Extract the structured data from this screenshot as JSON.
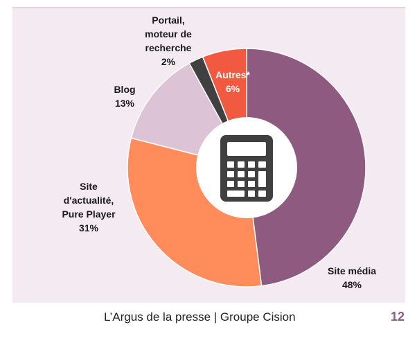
{
  "chart_data": {
    "type": "donut",
    "categories": [
      "Site média",
      "Site d'actualité, Pure Player",
      "Blog",
      "Portail, moteur de recherche",
      "Autres*"
    ],
    "values": [
      48,
      31,
      13,
      2,
      6
    ],
    "value_labels": [
      "48%",
      "31%",
      "13%",
      "2%",
      "6%"
    ],
    "colors": [
      "#8e5a80",
      "#ff8c5a",
      "#dcc3d5",
      "#404040",
      "#f15a40"
    ]
  },
  "footer": {
    "text": "L’Argus de la presse | Groupe Cision",
    "page": "12"
  }
}
